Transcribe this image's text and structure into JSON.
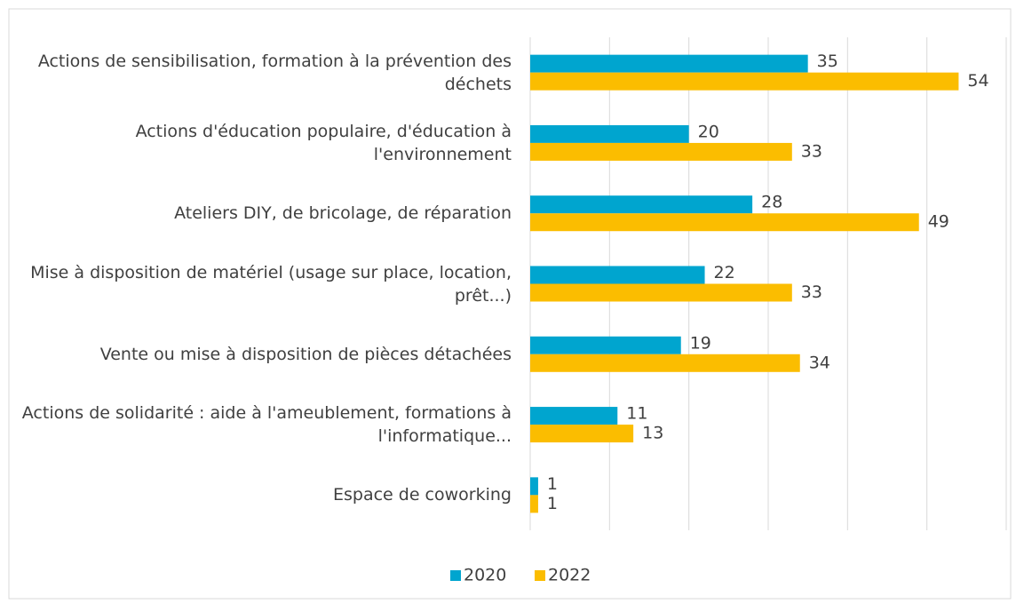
{
  "chart_data": {
    "type": "hbar",
    "categories": [
      "Actions de sensibilisation, formation à la prévention des déchets",
      "Actions d'éducation populaire, d'éducation à l'environnement",
      "Ateliers DIY, de bricolage, de réparation",
      "Mise à disposition de matériel (usage sur place, location, prêt...)",
      "Vente ou mise à disposition de pièces détachées",
      "Actions de solidarité : aide à l'ameublement, formations à l'informatique...",
      "Espace de coworking"
    ],
    "series": [
      {
        "name": "2020",
        "color": "#00a5cf",
        "values": [
          35,
          20,
          28,
          22,
          19,
          11,
          1
        ]
      },
      {
        "name": "2022",
        "color": "#fbbd00",
        "values": [
          54,
          33,
          49,
          33,
          34,
          13,
          1
        ]
      }
    ],
    "xlim": [
      0,
      60
    ],
    "xticks": [
      0,
      10,
      20,
      30,
      40,
      50,
      60
    ],
    "grid": true,
    "legend": "bottom"
  }
}
